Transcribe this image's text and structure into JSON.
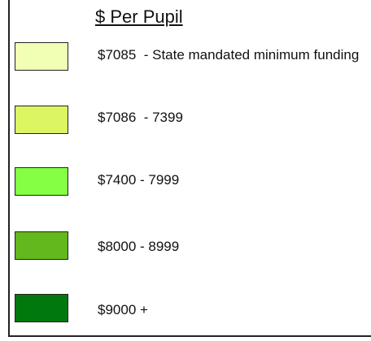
{
  "legend": {
    "title": "$ Per Pupil",
    "items": [
      {
        "label": "$7085  - State mandated minimum funding",
        "color": "#f0ffb4"
      },
      {
        "label": "$7086  - 7399",
        "color": "#dcf562"
      },
      {
        "label": "$7400 - 7999",
        "color": "#84ff44"
      },
      {
        "label": "$8000 - 8999",
        "color": "#62b81c"
      },
      {
        "label": "$9000 +",
        "color": "#00780e"
      }
    ]
  }
}
